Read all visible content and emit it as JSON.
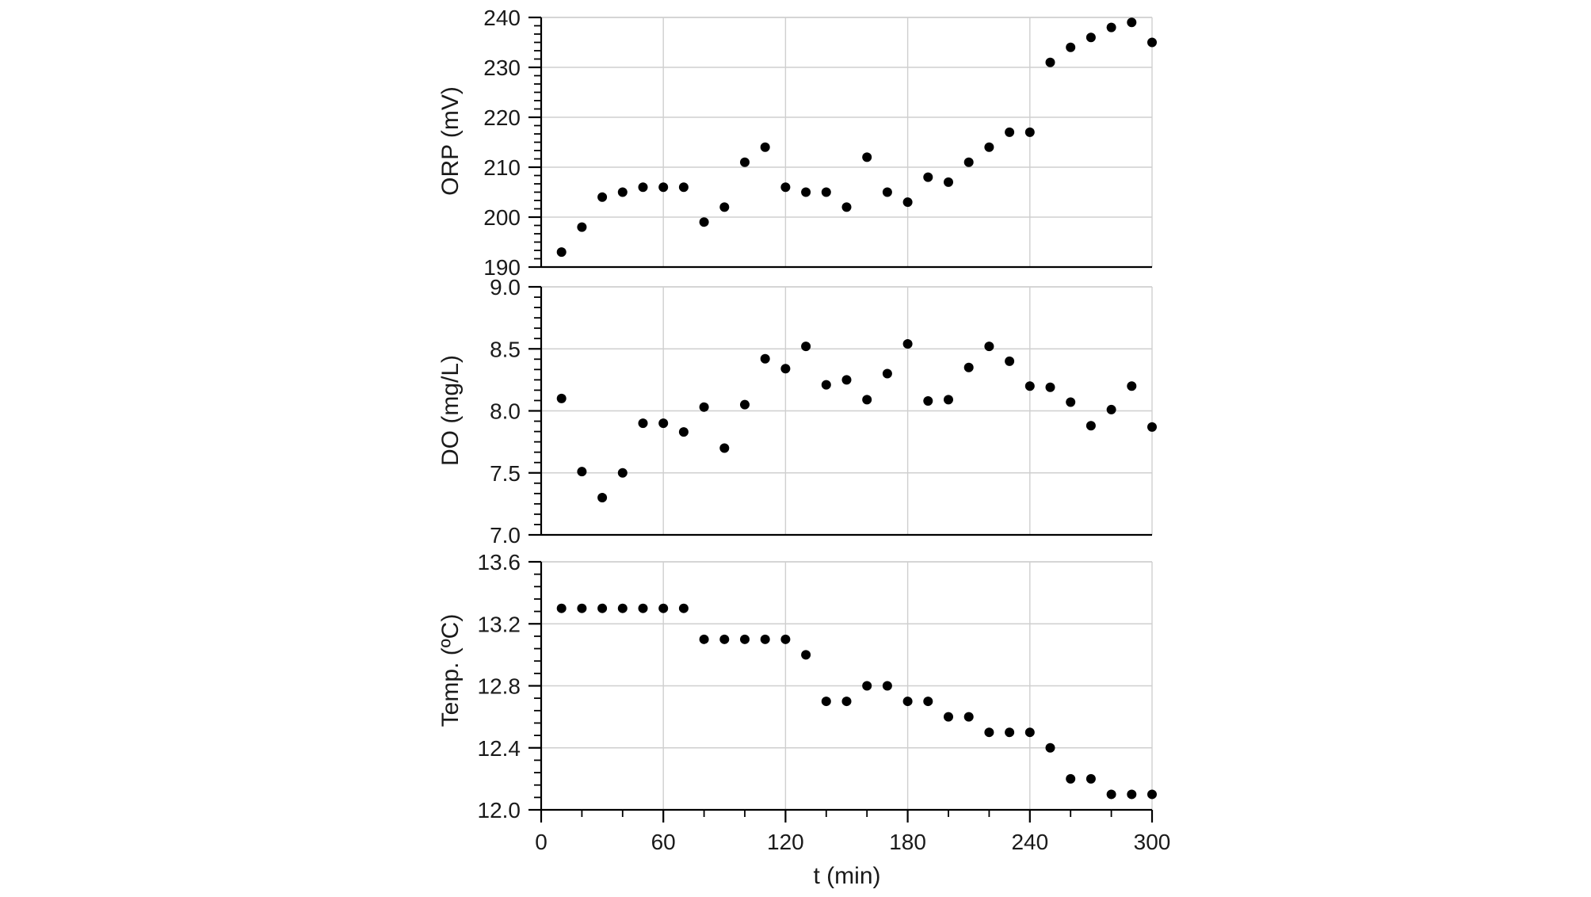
{
  "chart_data": [
    {
      "type": "scatter",
      "ylabel": "ORP (mV)",
      "ylim": [
        190,
        240
      ],
      "yticks": [
        "190",
        "200",
        "210",
        "220",
        "230",
        "240"
      ],
      "xlim": [
        0,
        300
      ],
      "series": [
        {
          "x": [
            10,
            20,
            30,
            40,
            50,
            60,
            70,
            80,
            90,
            100,
            110,
            120,
            130,
            140,
            150,
            160,
            170,
            180,
            190,
            200,
            210,
            220,
            230,
            240,
            250,
            260,
            270,
            280,
            290,
            300
          ],
          "y": [
            193,
            198,
            204,
            205,
            206,
            206,
            206,
            199,
            202,
            211,
            214,
            206,
            205,
            205,
            202,
            212,
            205,
            203,
            208,
            207,
            211,
            214,
            217,
            217,
            231,
            234,
            236,
            238,
            239,
            235
          ],
          "color": "#000000"
        }
      ]
    },
    {
      "type": "scatter",
      "ylabel": "DO (mg/L)",
      "ylim": [
        7.0,
        9.0
      ],
      "yticks": [
        "7.0",
        "7.5",
        "8.0",
        "8.5",
        "9.0"
      ],
      "xlim": [
        0,
        300
      ],
      "series": [
        {
          "x": [
            10,
            20,
            30,
            40,
            50,
            60,
            70,
            80,
            90,
            100,
            110,
            120,
            130,
            140,
            150,
            160,
            170,
            180,
            190,
            200,
            210,
            220,
            230,
            240,
            250,
            260,
            270,
            280,
            290,
            300
          ],
          "y": [
            8.1,
            7.51,
            7.3,
            7.5,
            7.9,
            7.9,
            7.83,
            8.03,
            7.7,
            8.05,
            8.42,
            8.34,
            8.52,
            8.21,
            8.25,
            8.09,
            8.3,
            8.54,
            8.08,
            8.09,
            8.35,
            8.52,
            8.4,
            8.2,
            8.19,
            8.07,
            7.88,
            8.01,
            8.2,
            7.87
          ],
          "color": "#000000"
        }
      ]
    },
    {
      "type": "scatter",
      "ylabel": "Temp. (ºC)",
      "ylim": [
        12.0,
        13.6
      ],
      "yticks": [
        "12.0",
        "12.4",
        "12.8",
        "13.2",
        "13.6"
      ],
      "xlim": [
        0,
        300
      ],
      "xlabel": "t (min)",
      "xticks": [
        "0",
        "60",
        "120",
        "180",
        "240",
        "300"
      ],
      "series": [
        {
          "x": [
            10,
            20,
            30,
            40,
            50,
            60,
            70,
            80,
            90,
            100,
            110,
            120,
            130,
            140,
            150,
            160,
            170,
            180,
            190,
            200,
            210,
            220,
            230,
            240,
            250,
            260,
            270,
            280,
            290,
            300
          ],
          "y": [
            13.3,
            13.3,
            13.3,
            13.3,
            13.3,
            13.3,
            13.3,
            13.1,
            13.1,
            13.1,
            13.1,
            13.1,
            13.0,
            12.7,
            12.7,
            12.8,
            12.8,
            12.7,
            12.7,
            12.6,
            12.6,
            12.5,
            12.5,
            12.5,
            12.4,
            12.2,
            12.2,
            12.1,
            12.1,
            12.1
          ],
          "color": "#000000"
        }
      ]
    }
  ]
}
